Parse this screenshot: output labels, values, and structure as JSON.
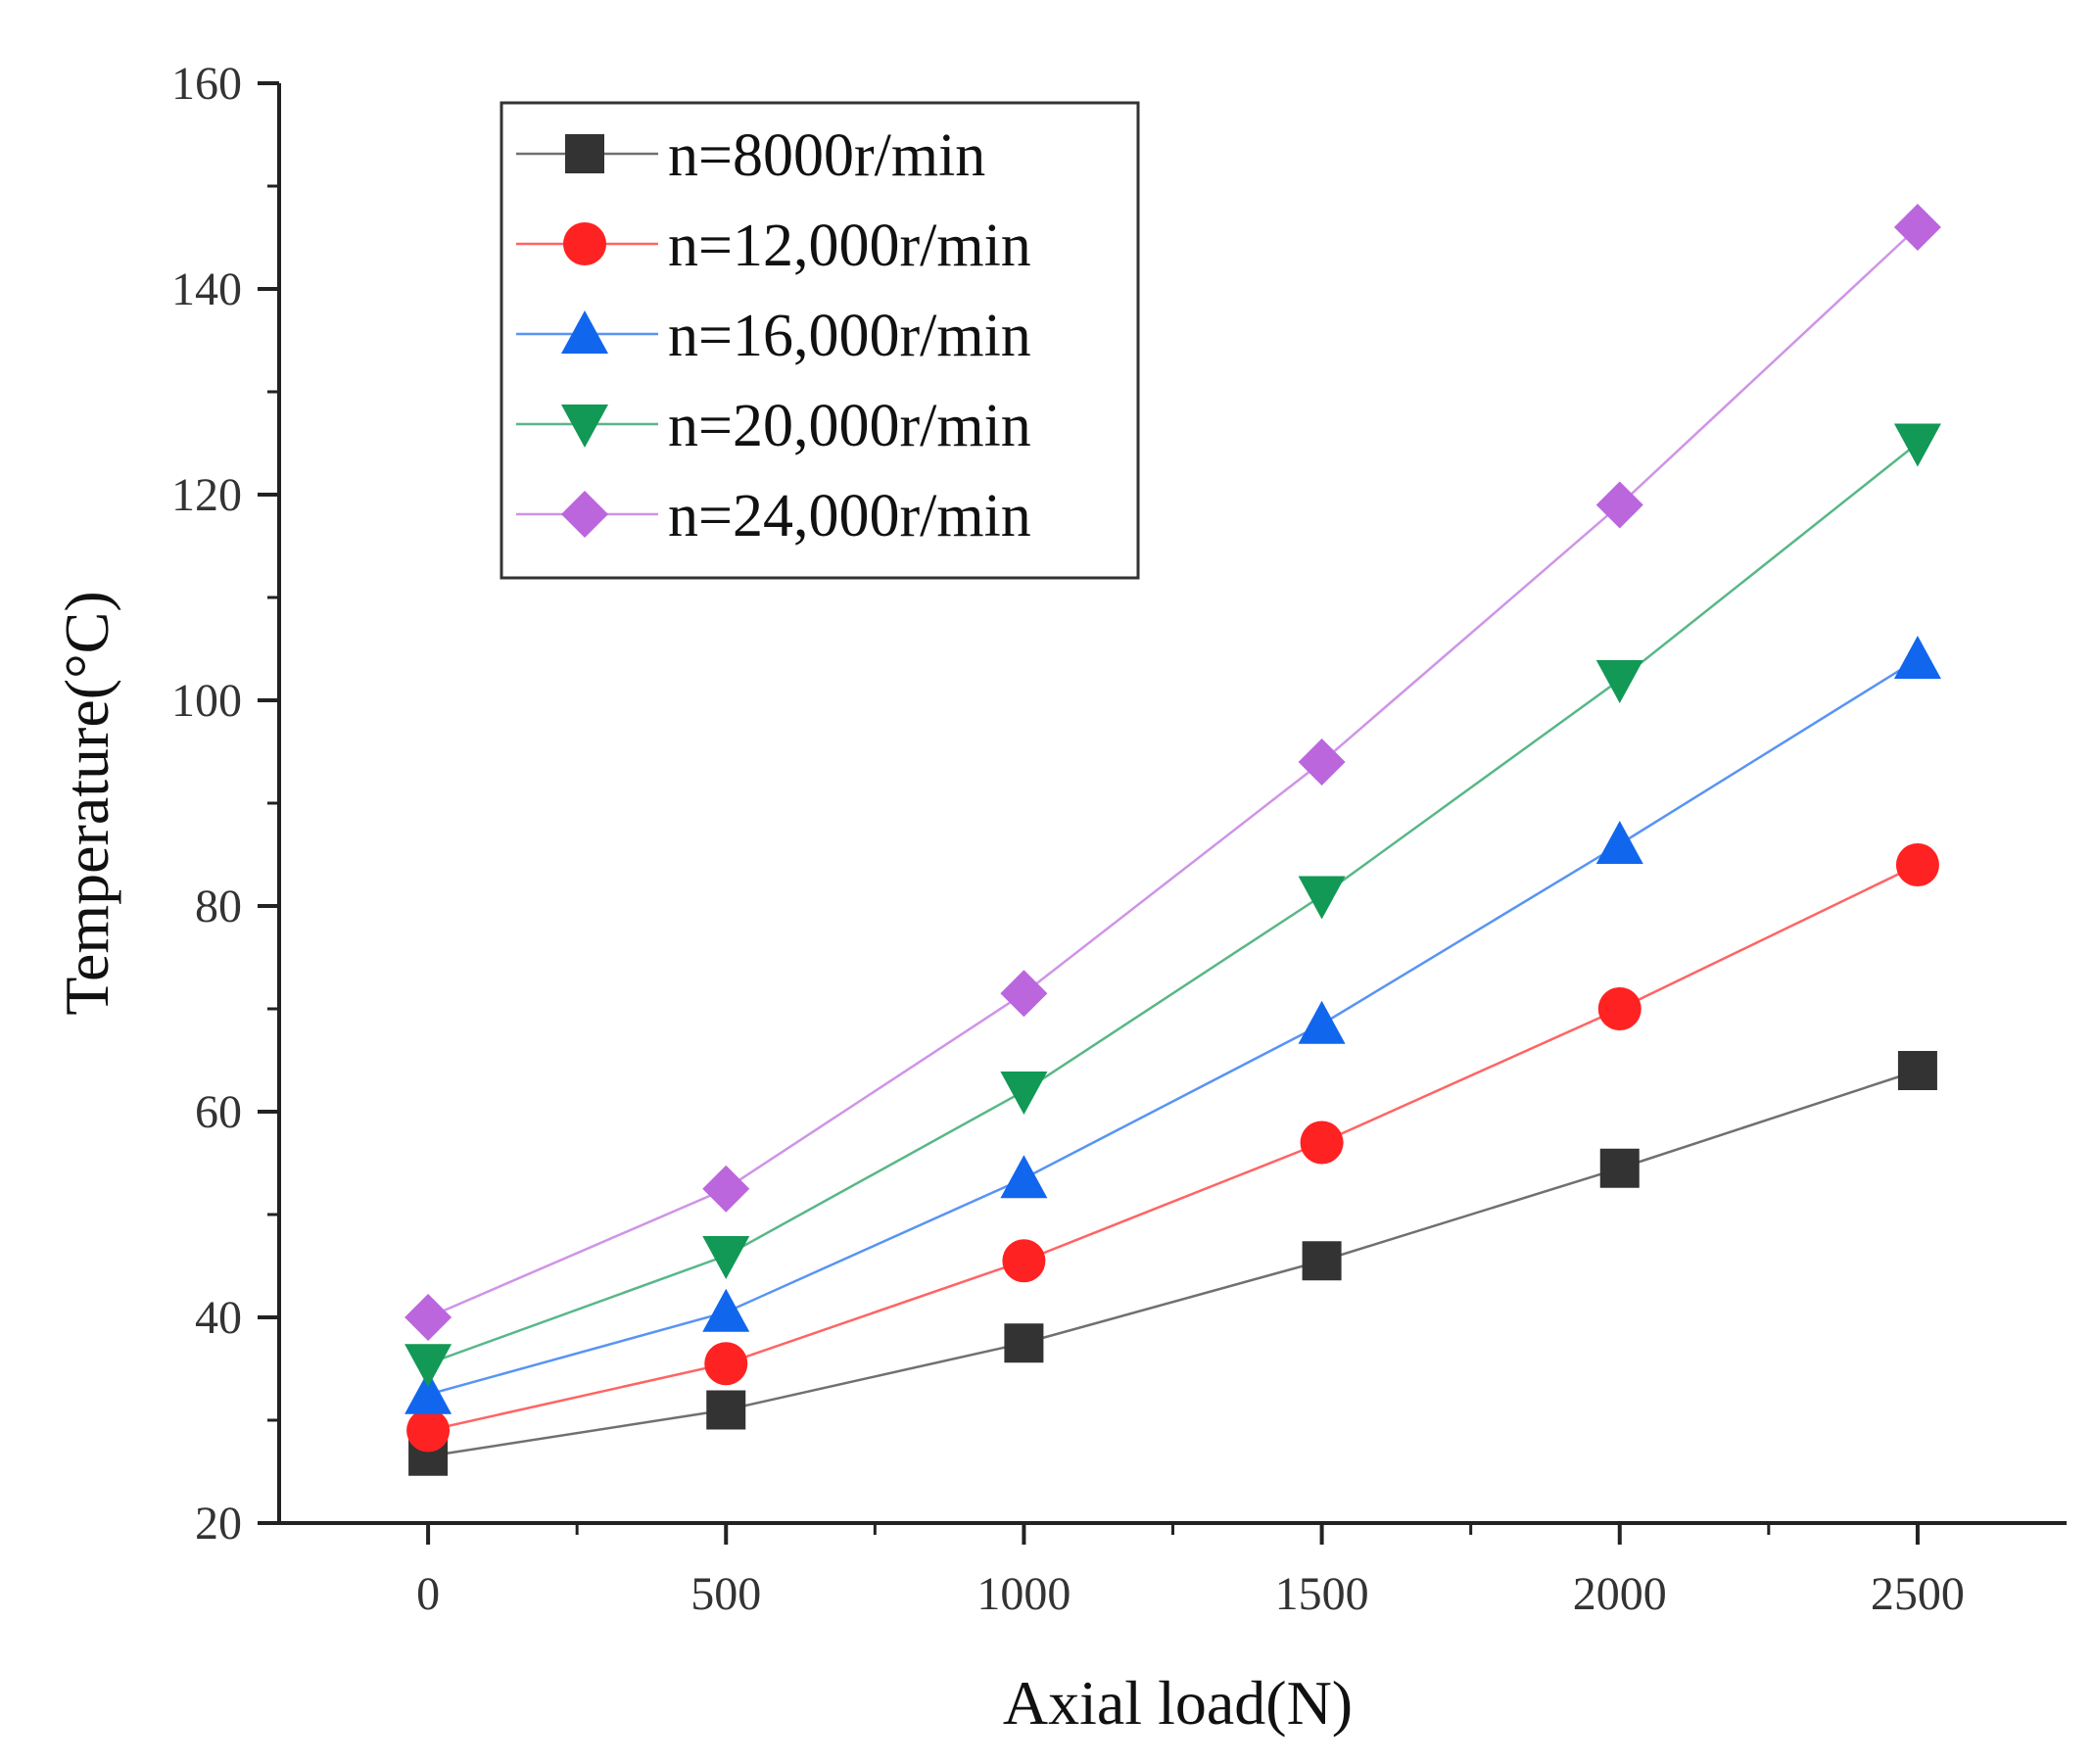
{
  "chart_data": {
    "type": "line",
    "xlabel": "Axial load(N)",
    "ylabel": "Temperature(°C)",
    "xlim": [
      -250,
      2750
    ],
    "ylim": [
      20,
      160
    ],
    "x_ticks": [
      0,
      500,
      1000,
      1500,
      2000,
      2500
    ],
    "y_ticks": [
      20,
      40,
      60,
      80,
      100,
      120,
      140,
      160
    ],
    "x": [
      0,
      500,
      1000,
      1500,
      2000,
      2500
    ],
    "grid": false,
    "legend_position": "top-left",
    "series": [
      {
        "name": "n=8000r/min",
        "color": "#333333",
        "marker": "square",
        "values": [
          26.5,
          31,
          37.5,
          45.5,
          54.5,
          64
        ]
      },
      {
        "name": "n=12,000r/min",
        "color": "#ff2222",
        "marker": "circle",
        "values": [
          29,
          35.5,
          45.5,
          57,
          70,
          84
        ]
      },
      {
        "name": "n=16,000r/min",
        "color": "#1166ee",
        "marker": "triangle-up",
        "values": [
          32.5,
          40.5,
          53.5,
          68.5,
          86,
          104
        ]
      },
      {
        "name": "n=20,000r/min",
        "color": "#119955",
        "marker": "triangle-down",
        "values": [
          35.5,
          46,
          62,
          81,
          102,
          125
        ]
      },
      {
        "name": "n=24,000r/min",
        "color": "#bb66dd",
        "marker": "diamond",
        "values": [
          40,
          52.5,
          71.5,
          94,
          119,
          146
        ]
      }
    ]
  }
}
